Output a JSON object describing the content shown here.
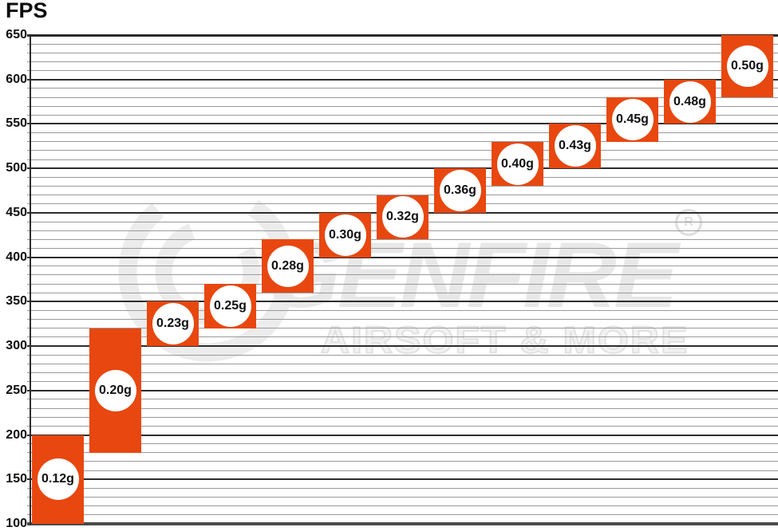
{
  "axis_title": "FPS",
  "watermark": {
    "brand": "GENFIRE",
    "tagline": "AIRSOFT & MORE",
    "registered_symbol": "R"
  },
  "colors": {
    "bar_fill": "#e8470f",
    "badge_fill": "#ffffff",
    "text": "#0d0d0d",
    "major_gridline": "#2d2d2d",
    "minor_gridline": "#9a9a9a",
    "watermark_gray": "#e8e8e8",
    "background": "#ffffff"
  },
  "chart_data": {
    "type": "bar",
    "subtype": "floating-range-columns",
    "title": "",
    "xlabel": "",
    "ylabel": "FPS",
    "ylim": [
      100,
      650
    ],
    "y_major_step": 50,
    "y_minor_step": 10,
    "y_ticks": [
      650,
      600,
      550,
      500,
      450,
      400,
      350,
      300,
      250,
      200,
      150,
      100
    ],
    "grid": true,
    "legend": false,
    "categories": [
      "0.12g",
      "0.20g",
      "0.23g",
      "0.25g",
      "0.28g",
      "0.30g",
      "0.32g",
      "0.36g",
      "0.40g",
      "0.43g",
      "0.45g",
      "0.48g",
      "0.50g"
    ],
    "series": [
      {
        "label": "0.12g",
        "fps_min": 100,
        "fps_max": 200
      },
      {
        "label": "0.20g",
        "fps_min": 180,
        "fps_max": 320
      },
      {
        "label": "0.23g",
        "fps_min": 300,
        "fps_max": 350
      },
      {
        "label": "0.25g",
        "fps_min": 320,
        "fps_max": 370
      },
      {
        "label": "0.28g",
        "fps_min": 360,
        "fps_max": 420
      },
      {
        "label": "0.30g",
        "fps_min": 400,
        "fps_max": 450
      },
      {
        "label": "0.32g",
        "fps_min": 420,
        "fps_max": 470
      },
      {
        "label": "0.36g",
        "fps_min": 450,
        "fps_max": 500
      },
      {
        "label": "0.40g",
        "fps_min": 480,
        "fps_max": 530
      },
      {
        "label": "0.43g",
        "fps_min": 500,
        "fps_max": 550
      },
      {
        "label": "0.45g",
        "fps_min": 530,
        "fps_max": 580
      },
      {
        "label": "0.48g",
        "fps_min": 550,
        "fps_max": 600
      },
      {
        "label": "0.50g",
        "fps_min": 580,
        "fps_max": 650
      }
    ]
  }
}
